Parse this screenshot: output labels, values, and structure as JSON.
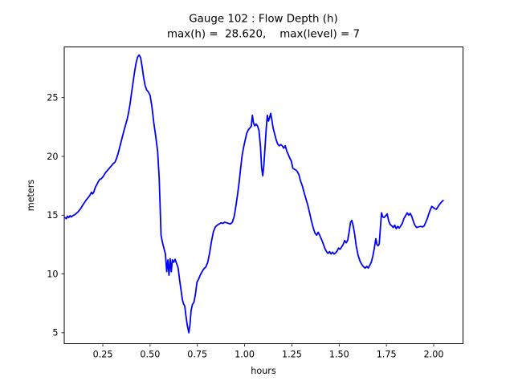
{
  "figure": {
    "background": "#ffffff",
    "spine_color": "#000000",
    "line_color": "#0000ff"
  },
  "chart_data": {
    "type": "line",
    "title": "Gauge 102 : Flow Depth (h)",
    "subtitle": "max(h) =  28.620,    max(level) = 7",
    "xlabel": "hours",
    "ylabel": "meters",
    "xlim": [
      0.046,
      2.155
    ],
    "ylim": [
      4.07,
      29.31
    ],
    "x_ticks": [
      0.25,
      0.5,
      0.75,
      1.0,
      1.25,
      1.5,
      1.75,
      2.0
    ],
    "x_tick_labels": [
      "0.25",
      "0.50",
      "0.75",
      "1.00",
      "1.25",
      "1.50",
      "1.75",
      "2.00"
    ],
    "y_ticks": [
      5,
      10,
      15,
      20,
      25
    ],
    "y_tick_labels": [
      "5",
      "10",
      "15",
      "20",
      "25"
    ],
    "grid": false,
    "legend_position": "none",
    "max_h": 28.62,
    "max_level": 7,
    "series": [
      {
        "name": "flow-depth-h",
        "color": "#0000ff",
        "points": [
          [
            0.05,
            14.8
          ],
          [
            0.057,
            14.7
          ],
          [
            0.063,
            14.92
          ],
          [
            0.07,
            14.8
          ],
          [
            0.077,
            14.95
          ],
          [
            0.083,
            14.85
          ],
          [
            0.09,
            14.95
          ],
          [
            0.1,
            15.02
          ],
          [
            0.11,
            15.15
          ],
          [
            0.12,
            15.3
          ],
          [
            0.13,
            15.5
          ],
          [
            0.14,
            15.75
          ],
          [
            0.15,
            16.0
          ],
          [
            0.16,
            16.25
          ],
          [
            0.17,
            16.45
          ],
          [
            0.18,
            16.65
          ],
          [
            0.19,
            16.95
          ],
          [
            0.196,
            16.8
          ],
          [
            0.203,
            17.0
          ],
          [
            0.21,
            17.35
          ],
          [
            0.218,
            17.6
          ],
          [
            0.226,
            17.85
          ],
          [
            0.234,
            18.05
          ],
          [
            0.242,
            18.1
          ],
          [
            0.25,
            18.25
          ],
          [
            0.258,
            18.45
          ],
          [
            0.266,
            18.65
          ],
          [
            0.274,
            18.8
          ],
          [
            0.282,
            18.95
          ],
          [
            0.29,
            19.1
          ],
          [
            0.298,
            19.25
          ],
          [
            0.306,
            19.4
          ],
          [
            0.314,
            19.5
          ],
          [
            0.322,
            19.8
          ],
          [
            0.33,
            20.2
          ],
          [
            0.338,
            20.7
          ],
          [
            0.346,
            21.2
          ],
          [
            0.354,
            21.7
          ],
          [
            0.362,
            22.2
          ],
          [
            0.37,
            22.65
          ],
          [
            0.378,
            23.1
          ],
          [
            0.386,
            23.7
          ],
          [
            0.394,
            24.45
          ],
          [
            0.402,
            25.4
          ],
          [
            0.41,
            26.3
          ],
          [
            0.418,
            27.2
          ],
          [
            0.426,
            27.95
          ],
          [
            0.434,
            28.45
          ],
          [
            0.442,
            28.62
          ],
          [
            0.45,
            28.4
          ],
          [
            0.458,
            27.6
          ],
          [
            0.466,
            26.7
          ],
          [
            0.474,
            26.0
          ],
          [
            0.482,
            25.65
          ],
          [
            0.49,
            25.5
          ],
          [
            0.5,
            25.2
          ],
          [
            0.51,
            24.2
          ],
          [
            0.52,
            22.8
          ],
          [
            0.53,
            21.7
          ],
          [
            0.54,
            20.4
          ],
          [
            0.548,
            18.2
          ],
          [
            0.553,
            15.8
          ],
          [
            0.558,
            13.3
          ],
          [
            0.565,
            12.7
          ],
          [
            0.573,
            12.2
          ],
          [
            0.581,
            11.7
          ],
          [
            0.588,
            10.2
          ],
          [
            0.594,
            11.2
          ],
          [
            0.6,
            9.9
          ],
          [
            0.606,
            11.3
          ],
          [
            0.612,
            10.2
          ],
          [
            0.618,
            11.2
          ],
          [
            0.625,
            11.0
          ],
          [
            0.632,
            11.25
          ],
          [
            0.64,
            10.9
          ],
          [
            0.648,
            10.55
          ],
          [
            0.656,
            9.5
          ],
          [
            0.664,
            8.6
          ],
          [
            0.671,
            7.8
          ],
          [
            0.677,
            7.45
          ],
          [
            0.683,
            7.3
          ],
          [
            0.69,
            6.4
          ],
          [
            0.697,
            5.6
          ],
          [
            0.705,
            5.0
          ],
          [
            0.711,
            5.7
          ],
          [
            0.717,
            6.9
          ],
          [
            0.724,
            7.4
          ],
          [
            0.732,
            7.6
          ],
          [
            0.74,
            8.3
          ],
          [
            0.748,
            9.3
          ],
          [
            0.756,
            9.55
          ],
          [
            0.765,
            9.9
          ],
          [
            0.775,
            10.2
          ],
          [
            0.785,
            10.45
          ],
          [
            0.795,
            10.6
          ],
          [
            0.805,
            11.0
          ],
          [
            0.815,
            11.8
          ],
          [
            0.825,
            12.8
          ],
          [
            0.835,
            13.6
          ],
          [
            0.845,
            14.0
          ],
          [
            0.855,
            14.15
          ],
          [
            0.865,
            14.25
          ],
          [
            0.875,
            14.35
          ],
          [
            0.885,
            14.3
          ],
          [
            0.895,
            14.4
          ],
          [
            0.905,
            14.35
          ],
          [
            0.915,
            14.3
          ],
          [
            0.925,
            14.25
          ],
          [
            0.935,
            14.4
          ],
          [
            0.945,
            14.9
          ],
          [
            0.955,
            15.9
          ],
          [
            0.963,
            16.8
          ],
          [
            0.971,
            17.8
          ],
          [
            0.979,
            19.0
          ],
          [
            0.987,
            20.1
          ],
          [
            0.995,
            20.8
          ],
          [
            1.003,
            21.4
          ],
          [
            1.011,
            21.95
          ],
          [
            1.019,
            22.25
          ],
          [
            1.027,
            22.4
          ],
          [
            1.035,
            22.55
          ],
          [
            1.041,
            23.5
          ],
          [
            1.047,
            22.85
          ],
          [
            1.054,
            22.6
          ],
          [
            1.061,
            22.75
          ],
          [
            1.068,
            22.6
          ],
          [
            1.076,
            22.2
          ],
          [
            1.084,
            20.8
          ],
          [
            1.09,
            19.0
          ],
          [
            1.096,
            18.35
          ],
          [
            1.102,
            19.3
          ],
          [
            1.108,
            20.8
          ],
          [
            1.114,
            22.3
          ],
          [
            1.12,
            23.5
          ],
          [
            1.126,
            23.0
          ],
          [
            1.132,
            23.3
          ],
          [
            1.138,
            23.65
          ],
          [
            1.144,
            23.1
          ],
          [
            1.151,
            22.4
          ],
          [
            1.159,
            21.9
          ],
          [
            1.167,
            21.4
          ],
          [
            1.175,
            21.05
          ],
          [
            1.183,
            20.9
          ],
          [
            1.191,
            21.0
          ],
          [
            1.199,
            20.9
          ],
          [
            1.207,
            20.7
          ],
          [
            1.215,
            20.9
          ],
          [
            1.223,
            20.45
          ],
          [
            1.231,
            20.15
          ],
          [
            1.239,
            19.85
          ],
          [
            1.247,
            19.6
          ],
          [
            1.255,
            19.0
          ],
          [
            1.263,
            18.9
          ],
          [
            1.271,
            18.85
          ],
          [
            1.279,
            18.7
          ],
          [
            1.287,
            18.45
          ],
          [
            1.295,
            17.95
          ],
          [
            1.305,
            17.5
          ],
          [
            1.315,
            16.9
          ],
          [
            1.325,
            16.35
          ],
          [
            1.335,
            15.8
          ],
          [
            1.345,
            15.1
          ],
          [
            1.355,
            14.4
          ],
          [
            1.365,
            13.8
          ],
          [
            1.373,
            13.45
          ],
          [
            1.381,
            13.3
          ],
          [
            1.389,
            13.55
          ],
          [
            1.397,
            13.3
          ],
          [
            1.405,
            13.0
          ],
          [
            1.415,
            12.6
          ],
          [
            1.425,
            12.15
          ],
          [
            1.433,
            11.9
          ],
          [
            1.441,
            11.75
          ],
          [
            1.449,
            11.9
          ],
          [
            1.457,
            11.7
          ],
          [
            1.465,
            11.85
          ],
          [
            1.473,
            11.7
          ],
          [
            1.481,
            11.8
          ],
          [
            1.489,
            11.95
          ],
          [
            1.497,
            12.2
          ],
          [
            1.505,
            12.1
          ],
          [
            1.513,
            12.3
          ],
          [
            1.521,
            12.5
          ],
          [
            1.529,
            12.85
          ],
          [
            1.537,
            12.65
          ],
          [
            1.545,
            12.85
          ],
          [
            1.553,
            13.6
          ],
          [
            1.56,
            14.4
          ],
          [
            1.567,
            14.55
          ],
          [
            1.574,
            14.1
          ],
          [
            1.582,
            13.4
          ],
          [
            1.59,
            12.4
          ],
          [
            1.6,
            11.6
          ],
          [
            1.61,
            11.1
          ],
          [
            1.62,
            10.8
          ],
          [
            1.63,
            10.6
          ],
          [
            1.638,
            10.5
          ],
          [
            1.646,
            10.65
          ],
          [
            1.654,
            10.5
          ],
          [
            1.662,
            10.75
          ],
          [
            1.67,
            11.0
          ],
          [
            1.678,
            11.5
          ],
          [
            1.686,
            12.2
          ],
          [
            1.694,
            13.0
          ],
          [
            1.7,
            12.5
          ],
          [
            1.706,
            12.4
          ],
          [
            1.712,
            12.55
          ],
          [
            1.718,
            13.9
          ],
          [
            1.724,
            15.2
          ],
          [
            1.731,
            14.85
          ],
          [
            1.738,
            14.8
          ],
          [
            1.746,
            14.95
          ],
          [
            1.754,
            15.1
          ],
          [
            1.762,
            14.5
          ],
          [
            1.77,
            14.2
          ],
          [
            1.778,
            14.1
          ],
          [
            1.786,
            13.95
          ],
          [
            1.794,
            14.15
          ],
          [
            1.802,
            13.85
          ],
          [
            1.81,
            14.05
          ],
          [
            1.818,
            13.9
          ],
          [
            1.826,
            14.1
          ],
          [
            1.834,
            14.3
          ],
          [
            1.842,
            14.7
          ],
          [
            1.851,
            14.95
          ],
          [
            1.86,
            15.2
          ],
          [
            1.868,
            15.0
          ],
          [
            1.876,
            15.15
          ],
          [
            1.884,
            14.9
          ],
          [
            1.892,
            14.5
          ],
          [
            1.9,
            14.15
          ],
          [
            1.91,
            13.95
          ],
          [
            1.92,
            14.0
          ],
          [
            1.93,
            14.05
          ],
          [
            1.94,
            14.0
          ],
          [
            1.95,
            14.1
          ],
          [
            1.958,
            14.4
          ],
          [
            1.966,
            14.7
          ],
          [
            1.974,
            15.1
          ],
          [
            1.982,
            15.45
          ],
          [
            1.99,
            15.75
          ],
          [
            1.998,
            15.65
          ],
          [
            2.006,
            15.55
          ],
          [
            2.014,
            15.5
          ],
          [
            2.022,
            15.7
          ],
          [
            2.03,
            15.9
          ],
          [
            2.04,
            16.1
          ],
          [
            2.05,
            16.25
          ]
        ]
      }
    ]
  }
}
